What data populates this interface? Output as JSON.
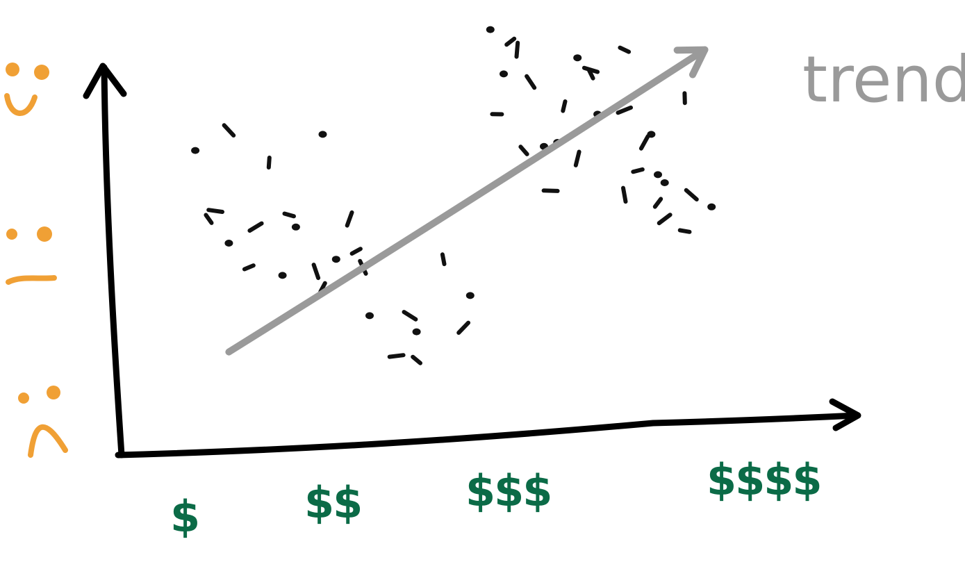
{
  "chart_data": {
    "type": "scatter",
    "title": "",
    "xlabel": "",
    "ylabel": "",
    "x_tick_labels": [
      "$",
      "$$",
      "$$$",
      "$$$$"
    ],
    "y_tick_icons": [
      "sad-face-icon",
      "neutral-face-icon",
      "happy-face-icon"
    ],
    "xlim": [
      0,
      1
    ],
    "ylim": [
      0,
      1
    ],
    "grid": false,
    "colors": {
      "points": "#111111",
      "trend": "#9a9a9a",
      "axes": "#000000",
      "x_ticks": "#0b6b47",
      "y_icons": "#f0a035"
    },
    "trend": {
      "label": "trend",
      "start": [
        0.16,
        0.23
      ],
      "end": [
        0.87,
        0.98
      ]
    },
    "points": [
      [
        0.11,
        0.73
      ],
      [
        0.16,
        0.78
      ],
      [
        0.22,
        0.7
      ],
      [
        0.3,
        0.77
      ],
      [
        0.14,
        0.58
      ],
      [
        0.13,
        0.56
      ],
      [
        0.16,
        0.5
      ],
      [
        0.2,
        0.54
      ],
      [
        0.25,
        0.57
      ],
      [
        0.26,
        0.54
      ],
      [
        0.34,
        0.56
      ],
      [
        0.19,
        0.44
      ],
      [
        0.24,
        0.42
      ],
      [
        0.29,
        0.43
      ],
      [
        0.3,
        0.39
      ],
      [
        0.32,
        0.46
      ],
      [
        0.43,
        0.32
      ],
      [
        0.48,
        0.46
      ],
      [
        0.44,
        0.28
      ],
      [
        0.41,
        0.22
      ],
      [
        0.44,
        0.21
      ],
      [
        0.52,
        0.37
      ],
      [
        0.51,
        0.29
      ],
      [
        0.56,
        0.82
      ],
      [
        0.57,
        0.92
      ],
      [
        0.59,
        0.98
      ],
      [
        0.58,
        1.0
      ],
      [
        0.55,
        1.03
      ],
      [
        0.61,
        0.9
      ],
      [
        0.66,
        0.84
      ],
      [
        0.68,
        0.96
      ],
      [
        0.7,
        0.93
      ],
      [
        0.7,
        0.92
      ],
      [
        0.71,
        0.82
      ],
      [
        0.75,
        0.83
      ],
      [
        0.75,
        0.98
      ],
      [
        0.79,
        0.77
      ],
      [
        0.78,
        0.75
      ],
      [
        0.77,
        0.68
      ],
      [
        0.8,
        0.67
      ],
      [
        0.75,
        0.62
      ],
      [
        0.8,
        0.6
      ],
      [
        0.81,
        0.65
      ],
      [
        0.85,
        0.62
      ],
      [
        0.84,
        0.86
      ],
      [
        0.65,
        0.75
      ],
      [
        0.64,
        0.63
      ],
      [
        0.6,
        0.73
      ],
      [
        0.63,
        0.74
      ],
      [
        0.81,
        0.56
      ],
      [
        0.84,
        0.53
      ],
      [
        0.88,
        0.59
      ],
      [
        0.68,
        0.71
      ],
      [
        0.35,
        0.48
      ],
      [
        0.37,
        0.32
      ],
      [
        0.36,
        0.44
      ]
    ]
  }
}
